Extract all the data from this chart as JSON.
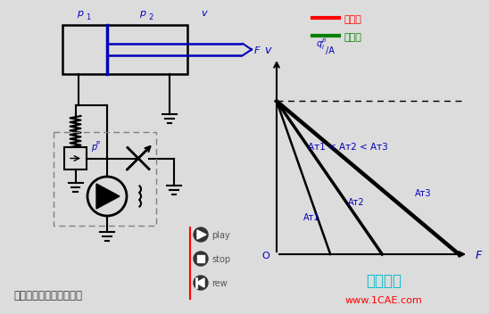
{
  "bg_color": "#dcdcdc",
  "blue_color": "#0000bb",
  "cyan_color": "#00bbcc",
  "red_color": "#ff0000",
  "green_color": "#00cc00",
  "black_color": "#000000",
  "gray_color": "#888888",
  "legend_red_text": "进油路",
  "legend_green_text": "回油路",
  "title_text": "节流阀旁路节流调速回路",
  "watermark1": "仿真在线",
  "watermark2": "www.1CAE.com",
  "play_text": "play",
  "stop_text": "stop",
  "rew_text": "rew",
  "label_p1": "p",
  "label_p2": "p",
  "label_v": "v",
  "label_F": "F",
  "label_pp": "p",
  "label_O": "O",
  "label_v_axis": "v",
  "label_F_axis": "F",
  "label_q": "q",
  "ineq_text": "Aᴛ1 < Aᴛ2 < Aᴛ3",
  "line_labels": [
    "Aᴛ1",
    "Aᴛ2",
    "Aᴛ3"
  ]
}
